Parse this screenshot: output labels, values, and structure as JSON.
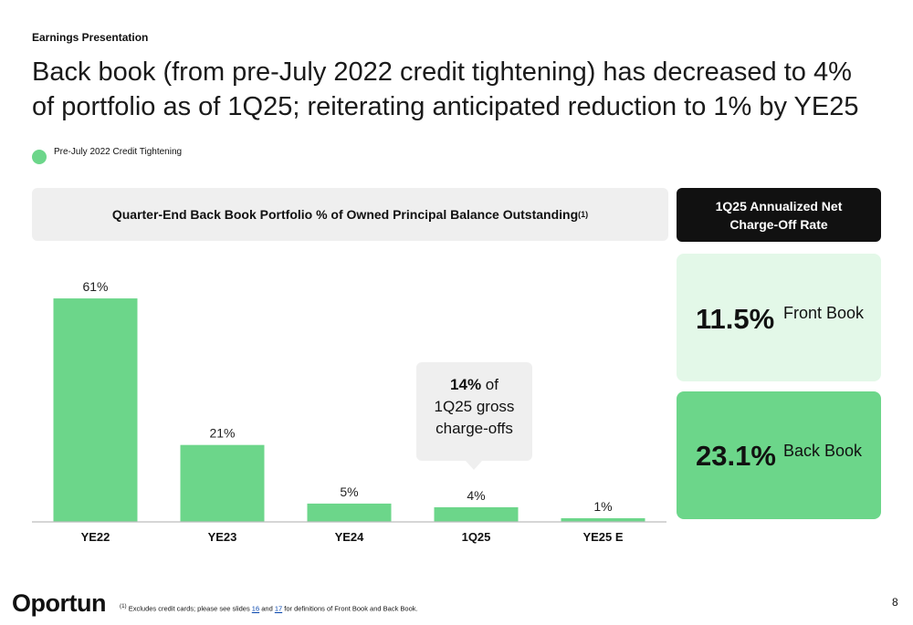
{
  "eyebrow": "Earnings Presentation",
  "headline": "Back book (from pre-July 2022 credit tightening) has decreased to 4% of portfolio as of 1Q25; reiterating anticipated reduction to 1% by YE25",
  "legend": {
    "label": "Pre-July 2022 Credit Tightening",
    "color": "#6cd68a"
  },
  "chart_header": {
    "title": "Quarter-End Back Book Portfolio % of Owned Principal Balance Outstanding",
    "superscript": "(1)"
  },
  "chart_data": {
    "type": "bar",
    "categories": [
      "YE22",
      "YE23",
      "YE24",
      "1Q25",
      "YE25 E"
    ],
    "values": [
      61,
      21,
      5,
      4,
      1
    ],
    "data_labels": [
      "61%",
      "21%",
      "5%",
      "4%",
      "1%"
    ],
    "title": "Quarter-End Back Book Portfolio % of Owned Principal Balance Outstanding",
    "xlabel": "",
    "ylabel": "",
    "ylim": [
      0,
      66
    ],
    "grid": false,
    "bar_color": "#6cd68a"
  },
  "callout": {
    "bold": "14%",
    "line1_rest": " of",
    "line2": "1Q25 gross",
    "line3": "charge-offs"
  },
  "nco": {
    "header_line1": "1Q25 Annualized Net",
    "header_line2": "Charge-Off Rate",
    "front": {
      "value": "11.5%",
      "label": "Front Book",
      "color": "#e3f8e8"
    },
    "back": {
      "value": "23.1%",
      "label": "Back Book",
      "color": "#6cd68a"
    }
  },
  "footer": {
    "logo": "Oportun",
    "footnote_sup": "(1)",
    "footnote_pre": " Excludes credit cards; please see slides ",
    "link1": "16",
    "footnote_and": " and ",
    "link2": "17",
    "footnote_post": " for definitions of Front Book and Back Book.",
    "page_number": "8"
  }
}
